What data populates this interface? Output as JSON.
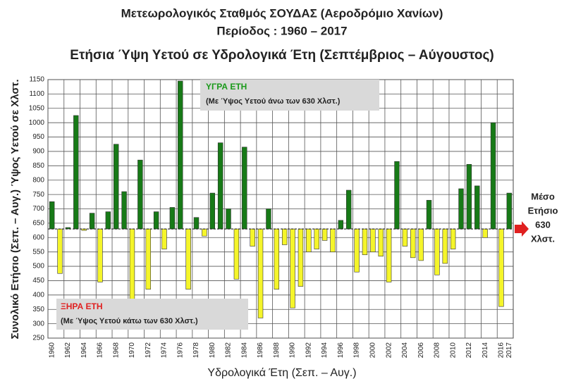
{
  "chart_data": {
    "type": "bar",
    "title": "Μετεωρολογικός Σταθμός ΣΟΥΔΑΣ (Αεροδρόμιο Χανίων)",
    "subtitle": "Περίοδος  : 1960 – 2017",
    "chart_title": "Ετήσια  Ύψη Υετού σε Υδρολογικά Έτη  (Σεπτέμβριος – Αύγουστος)",
    "x_label": "Υδρολογικά Έτη  (Σεπ. – Αυγ.)",
    "y_label": "Συνολικό Ετήσιο  (Σεπ. – Αυγ.) Ύψος  Υετού σε Χλστ.",
    "categories": [
      "1960",
      null,
      "1962",
      null,
      "1964",
      null,
      "1966",
      null,
      "1968",
      null,
      "1970",
      null,
      "1972",
      null,
      "1974",
      null,
      "1976",
      null,
      "1978",
      null,
      "1980",
      null,
      "1982",
      null,
      "1984",
      null,
      "1986",
      null,
      "1988",
      null,
      "1990",
      null,
      "1992",
      null,
      "1994",
      null,
      "1996",
      null,
      "1998",
      null,
      "2000",
      null,
      "2002",
      null,
      "2004",
      null,
      "2006",
      null,
      "2008",
      null,
      "2010",
      null,
      "2012",
      null,
      "2014",
      null,
      "2016",
      "2017"
    ],
    "values": [
      725,
      475,
      635,
      1025,
      625,
      685,
      445,
      690,
      925,
      760,
      380,
      870,
      420,
      690,
      560,
      705,
      1145,
      420,
      670,
      605,
      755,
      930,
      700,
      455,
      915,
      570,
      320,
      700,
      420,
      575,
      355,
      430,
      550,
      560,
      590,
      550,
      660,
      765,
      480,
      540,
      550,
      535,
      445,
      865,
      570,
      530,
      520,
      730,
      470,
      510,
      560,
      770,
      855,
      780,
      600,
      1000,
      360,
      755
    ],
    "mean": 630,
    "above_color": "#177a17",
    "below_color": "#f5f52a",
    "ylim": [
      250,
      1150
    ],
    "yticks": [
      250,
      300,
      350,
      400,
      450,
      500,
      550,
      600,
      650,
      700,
      750,
      800,
      850,
      900,
      950,
      1000,
      1050,
      1100,
      1150
    ],
    "grid": true,
    "wet_title": "ΥΓΡΑ ΕΤΗ",
    "wet_note": "(Με Ύψος Υετού  άνω των 630 Χλστ.)",
    "dry_title": "ΞΗΡΑ ΕΤΗ",
    "dry_note": "(Με Ύψος Υετού  κάτω των 630 Χλστ.)",
    "mean_note": [
      "Μέσο",
      "Ετήσιο",
      "630",
      "Χλστ."
    ]
  }
}
